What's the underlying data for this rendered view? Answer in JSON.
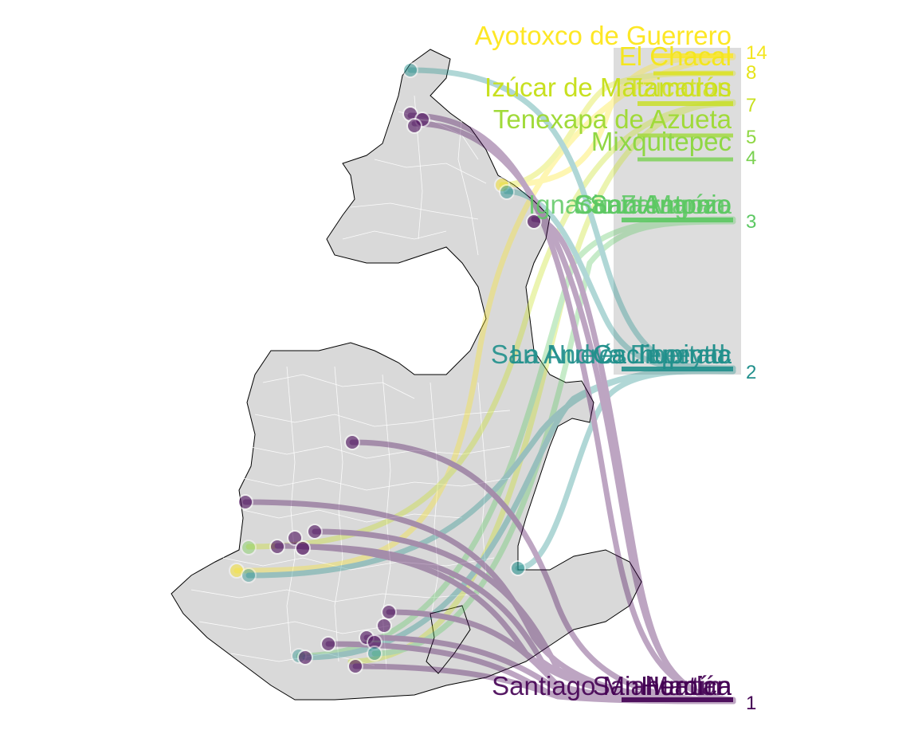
{
  "map": {
    "subject": "Municipal boundaries with connection flows to ranked labels",
    "color_scale": {
      "1": "#440154",
      "2": "#21908C",
      "3": "#5DC863",
      "4": "#7AD151",
      "5": "#A0DA39",
      "7": "#C8E020",
      "8": "#DCE319",
      "14": "#FDE725"
    },
    "land_color": "#d9d9d9",
    "border_color": "#000000",
    "inner_border_color": "#ffffff"
  },
  "labels": [
    {
      "name": "Ayotoxco de Guerrero",
      "value": null,
      "color": "#FDE725"
    },
    {
      "name": "El Chacal",
      "value": "14",
      "color": "#F4E61E"
    },
    {
      "name": "",
      "value": "8",
      "color": "#E6E419"
    },
    {
      "name": "Izúcar de Matamoros",
      "value": null,
      "color": "#C8E020"
    },
    {
      "name": "Tzicatlán",
      "value": null,
      "color": "#D2E21B"
    },
    {
      "name": "",
      "value": "7",
      "color": "#C8E020"
    },
    {
      "name": "Tenexapa de Azueta",
      "value": null,
      "color": "#A0DA39"
    },
    {
      "name": "Mixquitepec",
      "value": "5",
      "color": "#8FD744"
    },
    {
      "name": "",
      "value": "4",
      "color": "#7AD151"
    },
    {
      "name": "San Antonio",
      "value": null,
      "color": "#5DC863"
    },
    {
      "name": "Santa María",
      "value": null,
      "color": "#5DC863"
    },
    {
      "name": "Ignacio Zaragoza",
      "value": null,
      "color": "#5DC863"
    },
    {
      "name": "Cuautempan",
      "value": null,
      "color": "#5DC863"
    },
    {
      "name": "",
      "value": "3",
      "color": "#5DC863"
    },
    {
      "name": "Cachupintla",
      "value": null,
      "color": "#21908C"
    },
    {
      "name": "La Nueva Libertad",
      "value": null,
      "color": "#21908C"
    },
    {
      "name": "San Andrés Tepeyac",
      "value": null,
      "color": "#21908C"
    },
    {
      "name": "",
      "value": "2",
      "color": "#21908C"
    },
    {
      "name": "Heroica",
      "value": null,
      "color": "#440154"
    },
    {
      "name": "San Martín",
      "value": null,
      "color": "#440154"
    },
    {
      "name": "Santiago Miahuatlán",
      "value": null,
      "color": "#440154"
    },
    {
      "name": "",
      "value": "1",
      "color": "#440154"
    }
  ]
}
